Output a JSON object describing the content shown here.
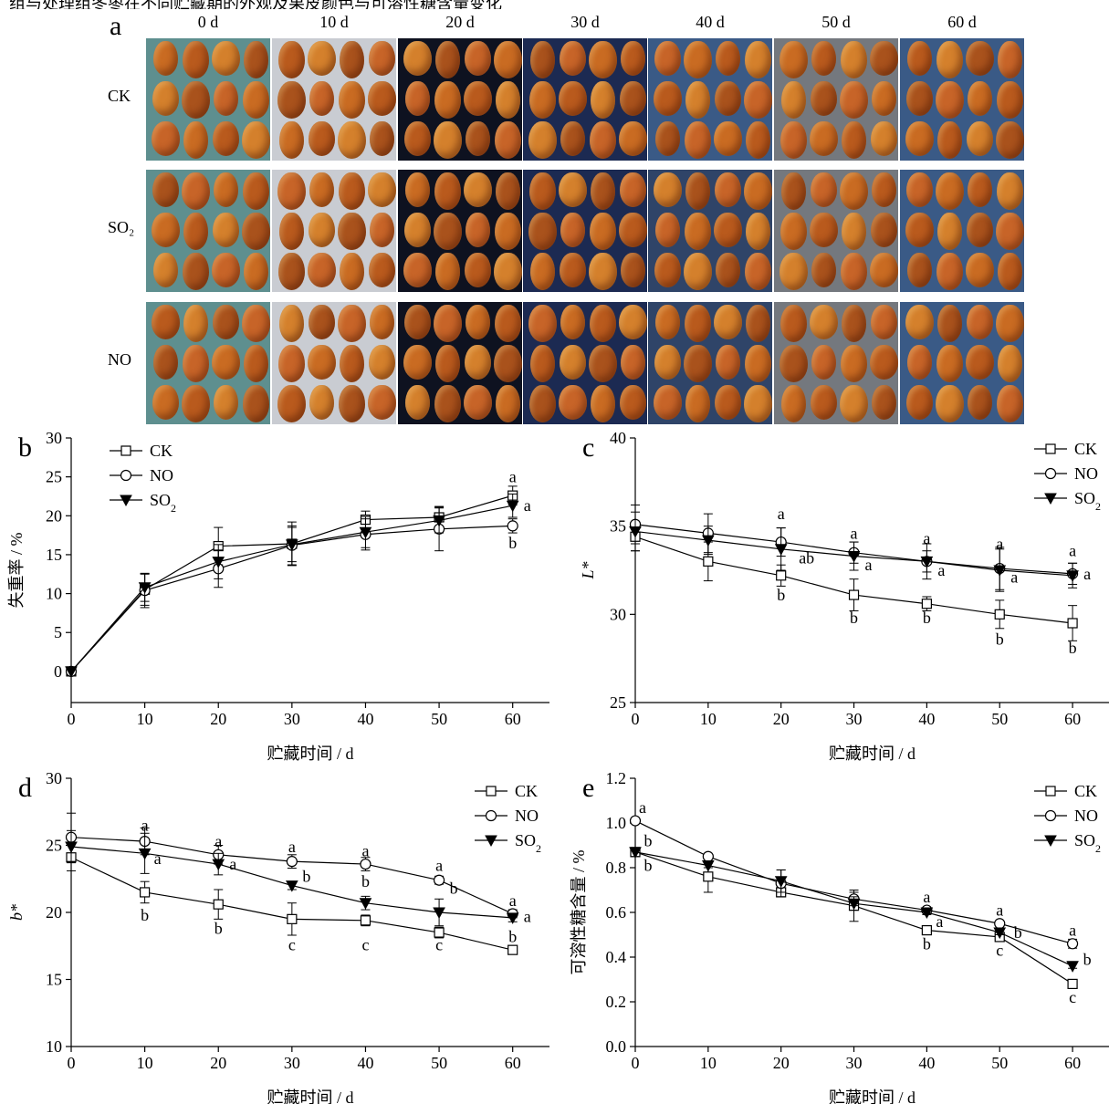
{
  "caption_partial": "组与处理组冬枣在不同贮藏期的外观及果皮颜色与可溶性糖含量变化",
  "panel_a": {
    "letter": "a",
    "days": [
      "0 d",
      "10 d",
      "20 d",
      "30 d",
      "40 d",
      "50 d",
      "60 d"
    ],
    "treatments": [
      "CK",
      "SO₂",
      "NO"
    ],
    "colors": {
      "teal": "#5e8f8f",
      "foil": "#c9ccd2",
      "dark": "#0e1220",
      "navy": "#1c2a52",
      "blue": "#3a5a86",
      "grey": "#74787e",
      "slate": "#2f4468",
      "fruit": "#c96b22"
    }
  },
  "x_ticks": [
    0,
    10,
    20,
    30,
    40,
    50,
    60
  ],
  "x_label": "贮藏时间 / d",
  "chart_data": [
    {
      "panel": "b",
      "type": "line",
      "ylabel": "失重率 / %",
      "xlim": [
        0,
        65
      ],
      "ylim": [
        -4,
        30
      ],
      "yticks": [
        0,
        5,
        10,
        15,
        20,
        25,
        30
      ],
      "x": [
        0,
        10,
        20,
        30,
        40,
        50,
        60
      ],
      "legend": [
        "CK",
        "NO",
        "SO₂"
      ],
      "legend_pos": "top-left",
      "series": [
        {
          "name": "CK",
          "marker": "square",
          "values": [
            0,
            10.5,
            16.1,
            16.4,
            19.5,
            19.8,
            22.6
          ],
          "errors": [
            0,
            2,
            2.4,
            2.8,
            1.1,
            1.4,
            1.2
          ]
        },
        {
          "name": "NO",
          "marker": "circle",
          "values": [
            0,
            10.4,
            13.2,
            16.2,
            17.6,
            18.3,
            18.7
          ],
          "errors": [
            0,
            2.2,
            2.4,
            2.5,
            2.0,
            2.8,
            0.9
          ]
        },
        {
          "name": "SO₂",
          "marker": "triangle",
          "values": [
            0,
            10.8,
            14.1,
            16.3,
            17.9,
            19.4,
            21.3
          ],
          "errors": [
            0,
            1.8,
            2.2,
            2.2,
            2.0,
            1.6,
            1.5
          ]
        }
      ],
      "annotations": [
        {
          "text": "a",
          "x": 60,
          "y": 25.0,
          "dx": 0
        },
        {
          "text": "a",
          "x": 60,
          "y": 21.3,
          "dx": 16
        },
        {
          "text": "b",
          "x": 60,
          "y": 16.5,
          "dx": 0
        }
      ]
    },
    {
      "panel": "c",
      "type": "line",
      "ylabel": "L*",
      "xlim": [
        0,
        65
      ],
      "ylim": [
        25,
        40
      ],
      "yticks": [
        25,
        30,
        35,
        40
      ],
      "x": [
        0,
        10,
        20,
        30,
        40,
        50,
        60
      ],
      "legend": [
        "CK",
        "NO",
        "SO₂"
      ],
      "legend_pos": "top-right",
      "series": [
        {
          "name": "CK",
          "marker": "square",
          "values": [
            34.4,
            33.0,
            32.2,
            31.1,
            30.6,
            30.0,
            29.5
          ],
          "errors": [
            0.8,
            1.1,
            0.6,
            0.9,
            0.4,
            0.8,
            1.0
          ]
        },
        {
          "name": "NO",
          "marker": "circle",
          "values": [
            35.1,
            34.6,
            34.1,
            33.5,
            33.0,
            32.6,
            32.3
          ],
          "errors": [
            1.1,
            1.1,
            0.8,
            0.6,
            0.6,
            1.2,
            0.6
          ]
        },
        {
          "name": "SO₂",
          "marker": "triangle",
          "values": [
            34.7,
            34.2,
            33.7,
            33.3,
            33.0,
            32.5,
            32.2
          ],
          "errors": [
            1.1,
            0.8,
            1.2,
            0.8,
            1.0,
            1.2,
            0.7
          ]
        }
      ],
      "annotations": [
        {
          "text": "a",
          "x": 20,
          "y": 35.7,
          "dx": 0
        },
        {
          "text": "ab",
          "x": 20,
          "y": 33.2,
          "dx": 28
        },
        {
          "text": "b",
          "x": 20,
          "y": 31.1,
          "dx": 0
        },
        {
          "text": "a",
          "x": 30,
          "y": 34.6,
          "dx": 0
        },
        {
          "text": "a",
          "x": 30,
          "y": 32.8,
          "dx": 16
        },
        {
          "text": "b",
          "x": 30,
          "y": 29.8,
          "dx": 0
        },
        {
          "text": "a",
          "x": 40,
          "y": 34.3,
          "dx": 0
        },
        {
          "text": "a",
          "x": 40,
          "y": 32.5,
          "dx": 16
        },
        {
          "text": "b",
          "x": 40,
          "y": 29.8,
          "dx": 0
        },
        {
          "text": "a",
          "x": 50,
          "y": 34.0,
          "dx": 0
        },
        {
          "text": "a",
          "x": 50,
          "y": 32.1,
          "dx": 16
        },
        {
          "text": "b",
          "x": 50,
          "y": 28.6,
          "dx": 0
        },
        {
          "text": "a",
          "x": 60,
          "y": 33.6,
          "dx": 0
        },
        {
          "text": "a",
          "x": 60,
          "y": 32.3,
          "dx": 16
        },
        {
          "text": "b",
          "x": 60,
          "y": 28.1,
          "dx": 0
        }
      ]
    },
    {
      "panel": "d",
      "type": "line",
      "ylabel": "b*",
      "xlim": [
        0,
        65
      ],
      "ylim": [
        10,
        30
      ],
      "yticks": [
        10,
        15,
        20,
        25,
        30
      ],
      "x": [
        0,
        10,
        20,
        30,
        40,
        50,
        60
      ],
      "legend": [
        "CK",
        "NO",
        "SO₂"
      ],
      "legend_pos": "top-right",
      "series": [
        {
          "name": "CK",
          "marker": "square",
          "values": [
            24.1,
            21.5,
            20.6,
            19.5,
            19.4,
            18.5,
            17.2
          ],
          "errors": [
            1.0,
            0.8,
            1.1,
            1.2,
            0.4,
            0.4,
            0.2
          ]
        },
        {
          "name": "NO",
          "marker": "circle",
          "values": [
            25.6,
            25.3,
            24.3,
            23.8,
            23.6,
            22.4,
            19.9
          ],
          "errors": [
            1.8,
            1.0,
            0.7,
            0.5,
            0.5,
            0.3,
            0.3
          ]
        },
        {
          "name": "SO₂",
          "marker": "triangle",
          "values": [
            24.9,
            24.4,
            23.6,
            22.0,
            20.7,
            20.0,
            19.6
          ],
          "errors": [
            1.2,
            1.5,
            0.8,
            0.3,
            0.5,
            1.0,
            0.3
          ]
        }
      ],
      "annotations": [
        {
          "text": "a",
          "x": 10,
          "y": 26.5,
          "dx": 0
        },
        {
          "text": "a",
          "x": 10,
          "y": 24.0,
          "dx": 14
        },
        {
          "text": "b",
          "x": 10,
          "y": 19.8,
          "dx": 0
        },
        {
          "text": "a",
          "x": 20,
          "y": 25.3,
          "dx": 0
        },
        {
          "text": "a",
          "x": 20,
          "y": 23.6,
          "dx": 16
        },
        {
          "text": "b",
          "x": 20,
          "y": 18.8,
          "dx": 0
        },
        {
          "text": "a",
          "x": 30,
          "y": 24.9,
          "dx": 0
        },
        {
          "text": "b",
          "x": 30,
          "y": 22.7,
          "dx": 16
        },
        {
          "text": "c",
          "x": 30,
          "y": 17.6,
          "dx": 0
        },
        {
          "text": "a",
          "x": 40,
          "y": 24.6,
          "dx": 0
        },
        {
          "text": "b",
          "x": 40,
          "y": 22.3,
          "dx": 0
        },
        {
          "text": "c",
          "x": 40,
          "y": 17.6,
          "dx": 0
        },
        {
          "text": "a",
          "x": 50,
          "y": 23.5,
          "dx": 0
        },
        {
          "text": "b",
          "x": 50,
          "y": 21.8,
          "dx": 16
        },
        {
          "text": "c",
          "x": 50,
          "y": 17.6,
          "dx": 0
        },
        {
          "text": "a",
          "x": 60,
          "y": 20.9,
          "dx": 0
        },
        {
          "text": "a",
          "x": 60,
          "y": 19.7,
          "dx": 16
        },
        {
          "text": "b",
          "x": 60,
          "y": 18.2,
          "dx": 0
        }
      ]
    },
    {
      "panel": "e",
      "type": "line",
      "ylabel": "可溶性糖含量 / %",
      "xlim": [
        0,
        65
      ],
      "ylim": [
        0,
        1.2
      ],
      "yticks": [
        0.0,
        0.2,
        0.4,
        0.6,
        0.8,
        1.0,
        1.2
      ],
      "x": [
        0,
        10,
        20,
        30,
        40,
        50,
        60
      ],
      "legend": [
        "CK",
        "NO",
        "SO₂"
      ],
      "legend_pos": "top-right",
      "series": [
        {
          "name": "CK",
          "marker": "square",
          "values": [
            0.87,
            0.76,
            0.69,
            0.63,
            0.52,
            0.49,
            0.28
          ],
          "errors": [
            0.01,
            0.07,
            0.01,
            0.07,
            0.01,
            0.02,
            0.01
          ]
        },
        {
          "name": "NO",
          "marker": "circle",
          "values": [
            1.01,
            0.85,
            0.73,
            0.66,
            0.61,
            0.55,
            0.46
          ],
          "errors": [
            0.01,
            0.01,
            0.06,
            0.03,
            0.01,
            0.01,
            0.02
          ]
        },
        {
          "name": "SO₂",
          "marker": "triangle",
          "values": [
            0.87,
            0.81,
            0.74,
            0.64,
            0.6,
            0.51,
            0.36
          ],
          "errors": [
            0.02,
            0.01,
            0.05,
            0.03,
            0.01,
            0.01,
            0.01
          ]
        }
      ],
      "annotations": [
        {
          "text": "a",
          "x": 0,
          "y": 1.07,
          "dx": 8
        },
        {
          "text": "b",
          "x": 0,
          "y": 0.92,
          "dx": 14
        },
        {
          "text": "b",
          "x": 0,
          "y": 0.81,
          "dx": 14
        },
        {
          "text": "a",
          "x": 40,
          "y": 0.67,
          "dx": 0
        },
        {
          "text": "a",
          "x": 40,
          "y": 0.56,
          "dx": 14
        },
        {
          "text": "b",
          "x": 40,
          "y": 0.46,
          "dx": 0
        },
        {
          "text": "a",
          "x": 50,
          "y": 0.61,
          "dx": 0
        },
        {
          "text": "b",
          "x": 50,
          "y": 0.51,
          "dx": 20
        },
        {
          "text": "c",
          "x": 50,
          "y": 0.43,
          "dx": 0
        },
        {
          "text": "a",
          "x": 60,
          "y": 0.52,
          "dx": 0
        },
        {
          "text": "b",
          "x": 60,
          "y": 0.39,
          "dx": 16
        },
        {
          "text": "c",
          "x": 60,
          "y": 0.22,
          "dx": 0
        }
      ]
    }
  ]
}
